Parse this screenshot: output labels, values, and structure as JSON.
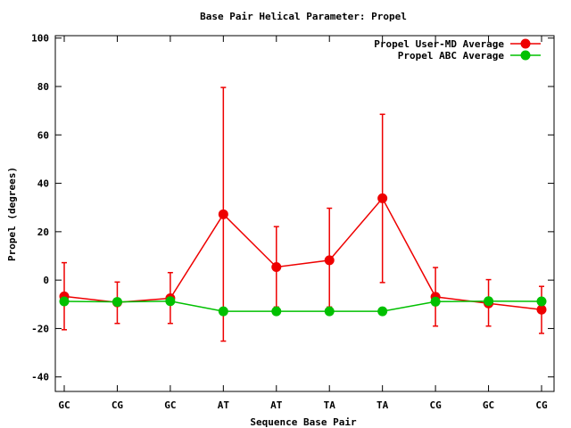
{
  "chart_data": {
    "type": "line",
    "title": "Base Pair Helical Parameter: Propel",
    "xlabel": "Sequence Base Pair",
    "ylabel": "Propel (degrees)",
    "categories": [
      "GC",
      "CG",
      "GC",
      "AT",
      "AT",
      "TA",
      "TA",
      "CG",
      "GC",
      "CG"
    ],
    "ylim": [
      -46,
      101
    ],
    "yticks": [
      -40,
      -20,
      0,
      20,
      40,
      60,
      80,
      100
    ],
    "grid": false,
    "legend_position": "top-right",
    "series": [
      {
        "name": "Propel User-MD Average",
        "color": "#ee0000",
        "marker": "circle",
        "values": [
          -6.7,
          -9.2,
          -7.5,
          27.2,
          5.4,
          8.2,
          33.8,
          -6.9,
          -9.6,
          -12.2
        ],
        "error_low": [
          -20.5,
          -17.9,
          -17.9,
          -25.2,
          -11.1,
          -11.1,
          -1.0,
          -19.0,
          -19.0,
          -22.0
        ],
        "error_high": [
          7.2,
          -0.8,
          3.1,
          79.6,
          22.1,
          29.7,
          68.5,
          5.2,
          0.2,
          -2.6
        ]
      },
      {
        "name": "Propel ABC Average",
        "color": "#00c000",
        "marker": "circle",
        "values": [
          -8.8,
          -9.0,
          -8.7,
          -12.9,
          -12.9,
          -12.9,
          -12.9,
          -8.9,
          -8.7,
          -8.8
        ]
      }
    ]
  }
}
